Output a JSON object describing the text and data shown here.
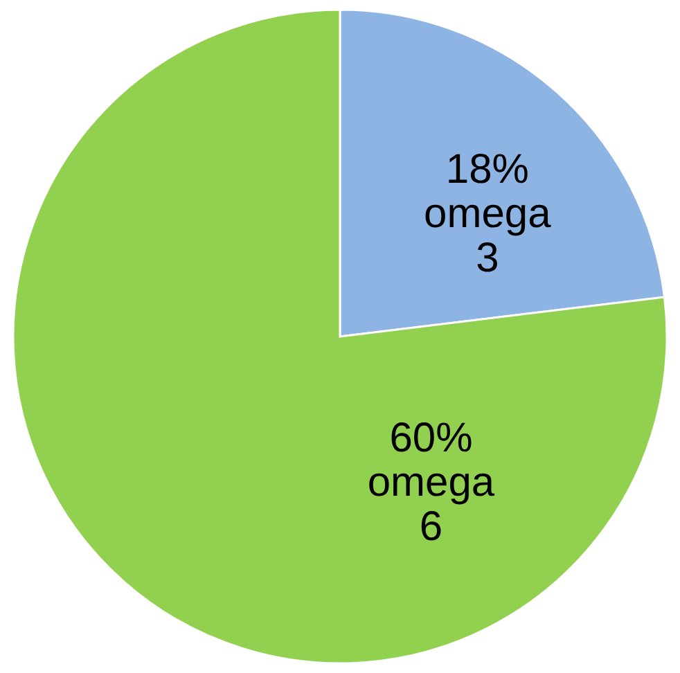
{
  "chart_data": {
    "type": "pie",
    "categories": [
      "omega 3",
      "omega 6"
    ],
    "values": [
      18,
      60
    ],
    "colors": [
      "#8db4e2",
      "#92d050"
    ],
    "value_labels": [
      "18%",
      "60%"
    ]
  }
}
